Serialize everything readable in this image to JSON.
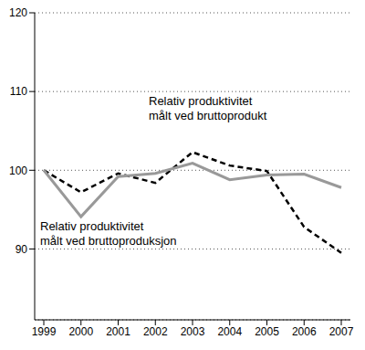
{
  "chart_data": {
    "type": "line",
    "categories": [
      "1999",
      "2000",
      "2001",
      "2002",
      "2003",
      "2004",
      "2005",
      "2006",
      "2007"
    ],
    "series": [
      {
        "name": "Relativ produktivitet målt ved bruttoprodukt",
        "color": "#000000",
        "line_style": "dashed",
        "values": [
          100,
          97.2,
          99.6,
          98.4,
          102.3,
          100.6,
          99.9,
          92.8,
          89.5
        ]
      },
      {
        "name": "Relativ produktivitet målt ved bruttoproduksjon",
        "color": "#999999",
        "line_style": "solid",
        "values": [
          100,
          94.1,
          99.2,
          99.6,
          100.9,
          98.8,
          99.4,
          99.5,
          97.8
        ]
      }
    ],
    "ylim": [
      81,
      120
    ],
    "yticks": [
      90,
      100,
      110,
      120
    ],
    "grid": true
  }
}
